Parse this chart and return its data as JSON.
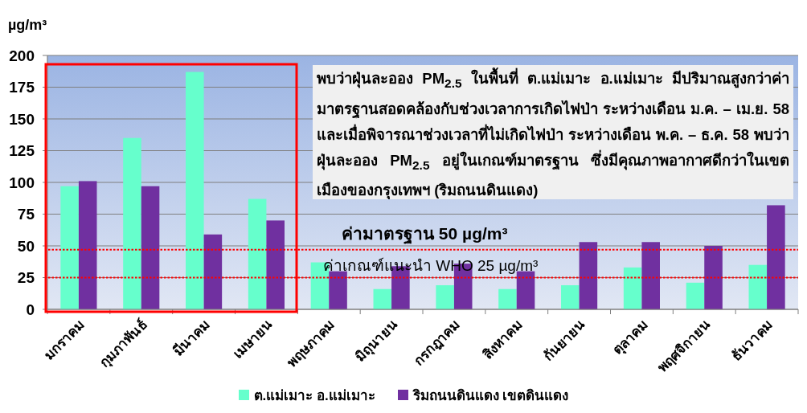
{
  "chart_data": {
    "type": "bar",
    "ylabel": "µg/m³",
    "categories": [
      "มกราคม",
      "กุมภาพันธ์",
      "มีนาคม",
      "เมษายน",
      "พฤษภาคม",
      "มิถุนายน",
      "กรกฎาคม",
      "สิงหาคม",
      "กันยายน",
      "ตุลาคม",
      "พฤศจิกายน",
      "ธันวาคม"
    ],
    "series": [
      {
        "name": "ต.แม่เมาะ อ.แม่เมาะ",
        "color": "#66ffcc",
        "values": [
          97,
          135,
          187,
          87,
          37,
          16,
          19,
          16,
          19,
          33,
          21,
          35
        ]
      },
      {
        "name": "ริมถนนดินแดง เขตดินแดง",
        "color": "#7030a0",
        "values": [
          101,
          97,
          59,
          70,
          30,
          34,
          36,
          30,
          53,
          53,
          50,
          82
        ]
      }
    ],
    "ylim": [
      0,
      200
    ],
    "yticks": [
      0,
      25,
      50,
      75,
      100,
      125,
      150,
      175,
      200
    ],
    "grid": "y",
    "legend": "bottom",
    "ref_lines": [
      {
        "axis": "y",
        "value": 47,
        "label": "ค่ามาตรฐาน 50 µg/m³",
        "color": "#ff0000",
        "line_style": "dotted"
      },
      {
        "axis": "y",
        "value": 25,
        "label": "ค่าเกณฑ์แนะนำ WHO 25 µg/m³",
        "color": "#ff0000",
        "line_style": "dotted"
      }
    ],
    "annotations": [
      "พบว่าฝุ่นละออง PM$_{2.5}$ ในพื้นที่ ต.แม่เมาะ อ.แม่เมาะ มีปริมาณสูงกว่าค่ามาตรฐานสอดคล้องกับช่วงเวลาการเกิดไฟป่า ระหว่างเดือน ม.ค. – เม.ย. 58 และเมื่อพิจารณาช่วงเวลาที่ไม่เกิดไฟป่า ระหว่างเดือน พ.ค. – ธ.ค. 58 พบว่าฝุ่นละออง PM$_{2.5}$ อยู่ในเกณฑ์มาตรฐาน ซึ่งมีคุณภาพอากาศดีกว่าในเขตเมืองของกรุงเทพฯ (ริมถนนดินแดง)"
    ]
  }
}
